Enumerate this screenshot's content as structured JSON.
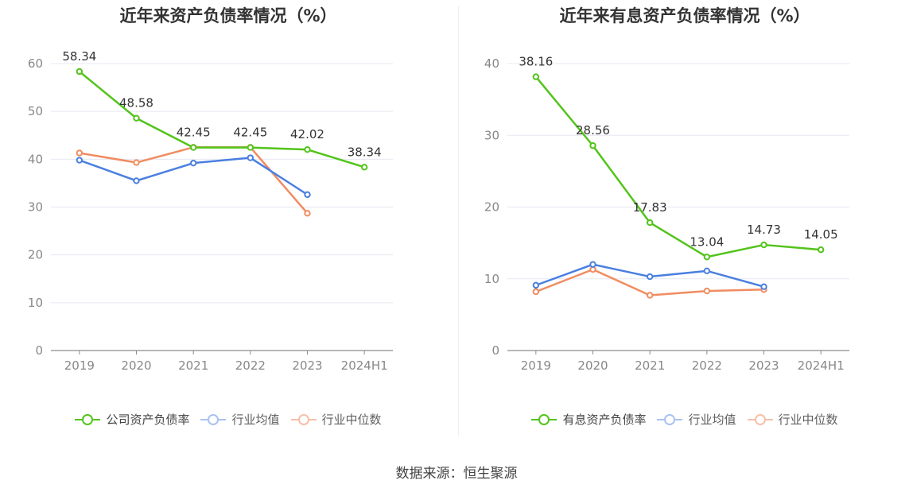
{
  "footer": {
    "source": "数据来源：恒生聚源"
  },
  "colors": {
    "company": "#52c41a",
    "avg": "#4a7fe0",
    "median": "#f08c60"
  },
  "chart_data": [
    {
      "type": "line",
      "title": "近年来资产负债率情况（%）",
      "categories": [
        "2019",
        "2020",
        "2021",
        "2022",
        "2023",
        "2024H1"
      ],
      "ylim": [
        0,
        60
      ],
      "yticks": [
        0,
        10,
        20,
        30,
        40,
        50,
        60
      ],
      "grid": true,
      "legend_position": "bottom",
      "series": [
        {
          "name": "公司资产负债率",
          "key": "company",
          "values": [
            58.34,
            48.58,
            42.45,
            42.45,
            42.02,
            38.34
          ],
          "labels": [
            "58.34",
            "48.58",
            "42.45",
            "42.45",
            "42.02",
            "38.34"
          ]
        },
        {
          "name": "行业均值",
          "key": "avg",
          "values": [
            39.8,
            35.5,
            39.2,
            40.3,
            32.6,
            null
          ]
        },
        {
          "name": "行业中位数",
          "key": "median",
          "values": [
            41.3,
            39.3,
            42.5,
            42.5,
            28.7,
            null
          ]
        }
      ]
    },
    {
      "type": "line",
      "title": "近年来有息资产负债率情况（%）",
      "categories": [
        "2019",
        "2020",
        "2021",
        "2022",
        "2023",
        "2024H1"
      ],
      "ylim": [
        0,
        40
      ],
      "yticks": [
        0,
        10,
        20,
        30,
        40
      ],
      "grid": true,
      "legend_position": "bottom",
      "series": [
        {
          "name": "有息资产负债率",
          "key": "company",
          "values": [
            38.16,
            28.56,
            17.83,
            13.04,
            14.73,
            14.05
          ],
          "labels": [
            "38.16",
            "28.56",
            "17.83",
            "13.04",
            "14.73",
            "14.05"
          ]
        },
        {
          "name": "行业均值",
          "key": "avg",
          "values": [
            9.1,
            12.0,
            10.3,
            11.1,
            8.9,
            null
          ]
        },
        {
          "name": "行业中位数",
          "key": "median",
          "values": [
            8.2,
            11.3,
            7.7,
            8.3,
            8.5,
            null
          ]
        }
      ]
    }
  ]
}
